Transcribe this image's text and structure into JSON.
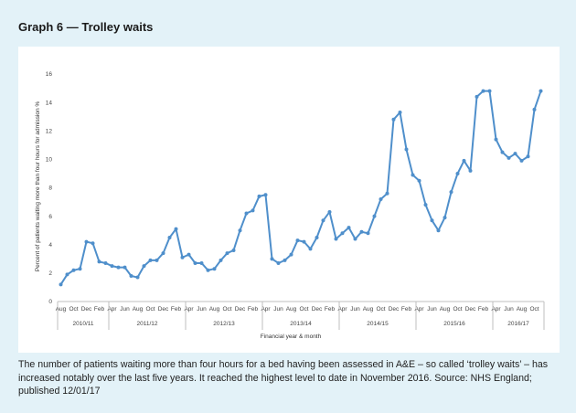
{
  "heading": "Graph 6 — Trolley waits",
  "caption": "The number of patients waiting more than four hours for a bed having been assessed in A&E – so called ‘trolley waits’ – has increased notably over the last five years. It reached the highest level to date in November 2016. Source: NHS England; published 12/01/17",
  "colors": {
    "line": "#4f8fcb",
    "background": "#e3f2f8",
    "panel": "#ffffff",
    "axis": "#bfbfbf"
  },
  "chart_data": {
    "type": "line",
    "title": "",
    "xlabel": "Financial year & month",
    "ylabel": "Percent of patients waiting more than four hours for admission %",
    "ylim": [
      0,
      16
    ],
    "yticks": [
      0,
      2,
      4,
      6,
      8,
      10,
      12,
      14,
      16
    ],
    "grid": false,
    "legend": "none",
    "x_start": "Aug 2010",
    "month_tick_labels": [
      "Aug",
      "Oct",
      "Dec",
      "Feb",
      "Apr",
      "Jun",
      "Aug",
      "Oct",
      "Dec",
      "Feb",
      "Apr",
      "Jun",
      "Aug",
      "Oct",
      "Dec",
      "Feb",
      "Apr",
      "Jun",
      "Aug",
      "Oct",
      "Dec",
      "Feb",
      "Apr",
      "Jun",
      "Aug",
      "Oct",
      "Dec",
      "Feb",
      "Apr",
      "Jun",
      "Aug",
      "Oct",
      "Dec",
      "Feb",
      "Apr",
      "Jun",
      "Aug",
      "Oct"
    ],
    "year_groups": [
      {
        "label": "2010/11",
        "months": 8
      },
      {
        "label": "2011/12",
        "months": 12
      },
      {
        "label": "2012/13",
        "months": 12
      },
      {
        "label": "2013/14",
        "months": 12
      },
      {
        "label": "2014/15",
        "months": 12
      },
      {
        "label": "2015/16",
        "months": 12
      },
      {
        "label": "2016/17",
        "months": 8
      }
    ],
    "series": [
      {
        "values": [
          1.2,
          1.9,
          2.2,
          2.3,
          4.2,
          4.1,
          2.8,
          2.7,
          2.5,
          2.4,
          2.4,
          1.8,
          1.7,
          2.5,
          2.9,
          2.9,
          3.4,
          4.5,
          5.1,
          3.1,
          3.3,
          2.7,
          2.7,
          2.2,
          2.3,
          2.9,
          3.4,
          3.6,
          5.0,
          6.2,
          6.4,
          7.4,
          7.5,
          3.0,
          2.7,
          2.9,
          3.3,
          4.3,
          4.2,
          3.7,
          4.5,
          5.7,
          6.3,
          4.4,
          4.8,
          5.2,
          4.4,
          4.9,
          4.8,
          6.0,
          7.2,
          7.6,
          12.8,
          13.3,
          10.7,
          8.9,
          8.5,
          6.8,
          5.7,
          5.0,
          5.9,
          7.7,
          9.0,
          9.9,
          9.2,
          14.4,
          14.8,
          14.8,
          11.4,
          10.5,
          10.1,
          10.4,
          9.9,
          10.2,
          13.5,
          14.8
        ]
      }
    ]
  }
}
